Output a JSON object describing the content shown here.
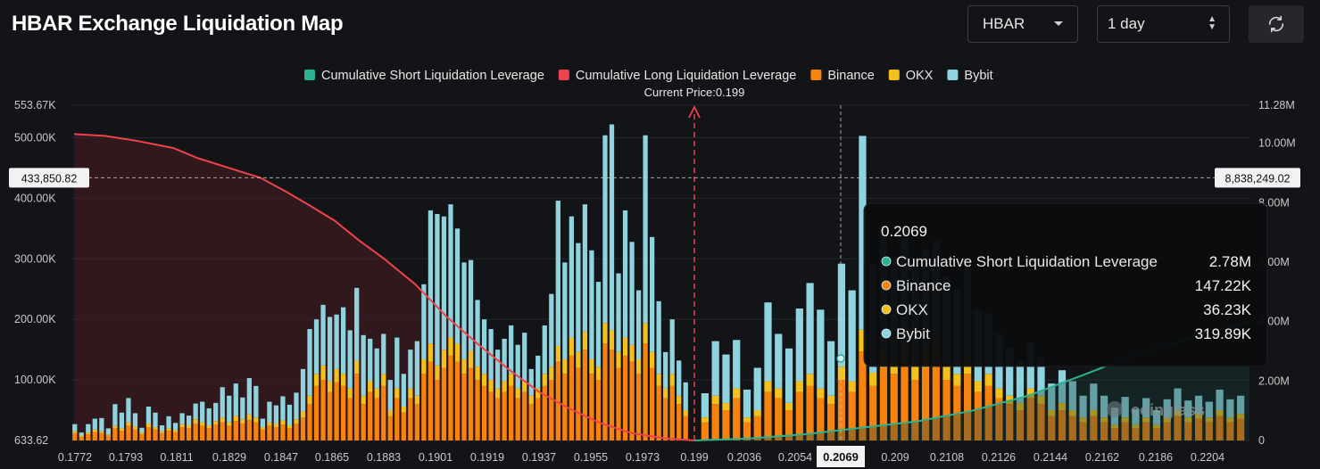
{
  "header": {
    "title": "HBAR Exchange Liquidation Map",
    "symbol_select": "HBAR",
    "period_select": "1 day",
    "refresh_icon": "refresh-icon"
  },
  "chart_data": {
    "type": "bar",
    "legend": {
      "placement": "top-center",
      "items": [
        {
          "label": "Cumulative Short Liquidation Leverage",
          "color": "#2bb28f"
        },
        {
          "label": "Cumulative Long Liquidation Leverage",
          "color": "#f0424c"
        },
        {
          "label": "Binance",
          "color": "#f7830f"
        },
        {
          "label": "OKX",
          "color": "#f3c01c"
        },
        {
          "label": "Bybit",
          "color": "#8ed3de"
        }
      ]
    },
    "current_price_label": "Current Price:0.199",
    "current_price": 0.199,
    "x_ticks": [
      "0.1772",
      "0.1793",
      "0.1811",
      "0.1829",
      "0.1847",
      "0.1865",
      "0.1883",
      "0.1901",
      "0.1919",
      "0.1937",
      "0.1955",
      "0.1973",
      "0.199",
      "0.2036",
      "0.2054",
      "0.2069",
      "0.209",
      "0.2108",
      "0.2126",
      "0.2144",
      "0.2162",
      "0.2186",
      "0.2204"
    ],
    "x_highlight_tick": "0.2069",
    "y_left_ticks": [
      "553.67K",
      "500.00K",
      "400.00K",
      "300.00K",
      "200.00K",
      "100.00K",
      "633.62"
    ],
    "y_left_tick_values": [
      553670,
      500000,
      400000,
      300000,
      200000,
      100000,
      633.62
    ],
    "y_left_range": [
      0,
      553670
    ],
    "y_right_ticks": [
      "11.28M",
      "10.00M",
      "8.00M",
      "6.00M",
      "4.00M",
      "2.00M",
      "0"
    ],
    "y_right_tick_values": [
      11280000,
      10000000,
      8000000,
      6000000,
      4000000,
      2000000,
      0
    ],
    "y_right_range": [
      0,
      11280000
    ],
    "crosshair": {
      "left_label": "433,850.82",
      "left_value": 433850.82,
      "right_label": "8,838,249.02"
    },
    "bars_left_of_price": [
      [
        12,
        3,
        12
      ],
      [
        6,
        2,
        5
      ],
      [
        10,
        3,
        14
      ],
      [
        14,
        4,
        18
      ],
      [
        12,
        3,
        22
      ],
      [
        8,
        2,
        10
      ],
      [
        20,
        4,
        36
      ],
      [
        16,
        4,
        26
      ],
      [
        24,
        6,
        40
      ],
      [
        18,
        5,
        22
      ],
      [
        10,
        3,
        8
      ],
      [
        22,
        6,
        28
      ],
      [
        18,
        4,
        24
      ],
      [
        12,
        3,
        10
      ],
      [
        16,
        4,
        20
      ],
      [
        14,
        3,
        12
      ],
      [
        22,
        5,
        18
      ],
      [
        20,
        5,
        16
      ],
      [
        28,
        7,
        26
      ],
      [
        24,
        6,
        34
      ],
      [
        20,
        5,
        28
      ],
      [
        26,
        6,
        30
      ],
      [
        30,
        8,
        50
      ],
      [
        24,
        6,
        44
      ],
      [
        32,
        8,
        54
      ],
      [
        28,
        7,
        36
      ],
      [
        34,
        9,
        60
      ],
      [
        30,
        8,
        52
      ],
      [
        18,
        4,
        14
      ],
      [
        24,
        6,
        34
      ],
      [
        22,
        6,
        30
      ],
      [
        26,
        7,
        40
      ],
      [
        20,
        5,
        34
      ],
      [
        28,
        7,
        44
      ],
      [
        38,
        10,
        70
      ],
      [
        60,
        14,
        110
      ],
      [
        90,
        20,
        90
      ],
      [
        100,
        24,
        100
      ],
      [
        80,
        18,
        106
      ],
      [
        96,
        22,
        90
      ],
      [
        90,
        20,
        110
      ],
      [
        70,
        16,
        96
      ],
      [
        110,
        22,
        120
      ],
      [
        60,
        14,
        100
      ],
      [
        80,
        18,
        70
      ],
      [
        70,
        16,
        66
      ],
      [
        90,
        20,
        66
      ],
      [
        40,
        10,
        50
      ],
      [
        70,
        16,
        84
      ],
      [
        46,
        10,
        54
      ],
      [
        70,
        16,
        64
      ],
      [
        60,
        14,
        90
      ],
      [
        110,
        24,
        124
      ],
      [
        130,
        30,
        220
      ],
      [
        100,
        24,
        250
      ],
      [
        120,
        30,
        220
      ],
      [
        140,
        30,
        220
      ],
      [
        130,
        30,
        190
      ],
      [
        110,
        24,
        160
      ],
      [
        120,
        28,
        150
      ],
      [
        100,
        22,
        110
      ],
      [
        90,
        20,
        90
      ],
      [
        80,
        20,
        84
      ],
      [
        70,
        16,
        64
      ],
      [
        80,
        18,
        70
      ],
      [
        90,
        20,
        80
      ],
      [
        70,
        16,
        72
      ],
      [
        80,
        18,
        80
      ],
      [
        60,
        14,
        44
      ],
      [
        70,
        16,
        54
      ],
      [
        90,
        20,
        80
      ],
      [
        100,
        22,
        120
      ],
      [
        130,
        26,
        240
      ],
      [
        110,
        24,
        160
      ],
      [
        140,
        30,
        200
      ],
      [
        120,
        26,
        180
      ],
      [
        150,
        30,
        210
      ],
      [
        110,
        24,
        180
      ],
      [
        100,
        22,
        140
      ],
      [
        160,
        34,
        310
      ],
      [
        150,
        32,
        340
      ],
      [
        120,
        26,
        130
      ],
      [
        140,
        30,
        210
      ],
      [
        130,
        28,
        170
      ],
      [
        110,
        24,
        114
      ],
      [
        160,
        34,
        310
      ],
      [
        120,
        26,
        190
      ],
      [
        90,
        20,
        120
      ],
      [
        70,
        16,
        60
      ],
      [
        90,
        20,
        90
      ],
      [
        60,
        14,
        58
      ],
      [
        40,
        10,
        46
      ]
    ],
    "bars_right_of_price": [
      [
        30,
        8,
        40
      ],
      [
        60,
        14,
        90
      ],
      [
        50,
        12,
        80
      ],
      [
        70,
        16,
        80
      ],
      [
        30,
        8,
        46
      ],
      [
        40,
        10,
        70
      ],
      [
        80,
        18,
        130
      ],
      [
        70,
        16,
        90
      ],
      [
        50,
        12,
        90
      ],
      [
        80,
        18,
        120
      ],
      [
        90,
        20,
        150
      ],
      [
        70,
        16,
        130
      ],
      [
        60,
        14,
        90
      ],
      [
        100,
        22,
        170
      ],
      [
        80,
        18,
        150
      ],
      [
        147,
        36,
        320
      ],
      [
        90,
        22,
        180
      ],
      [
        120,
        26,
        210
      ],
      [
        110,
        24,
        170
      ],
      [
        130,
        28,
        190
      ],
      [
        100,
        22,
        170
      ],
      [
        120,
        26,
        170
      ],
      [
        140,
        30,
        160
      ],
      [
        100,
        22,
        150
      ],
      [
        90,
        20,
        140
      ],
      [
        110,
        24,
        150
      ],
      [
        80,
        18,
        120
      ],
      [
        90,
        20,
        100
      ],
      [
        70,
        16,
        90
      ],
      [
        60,
        14,
        80
      ],
      [
        50,
        12,
        70
      ],
      [
        70,
        16,
        76
      ],
      [
        60,
        14,
        64
      ],
      [
        40,
        10,
        44
      ],
      [
        50,
        12,
        54
      ],
      [
        40,
        10,
        48
      ],
      [
        30,
        8,
        36
      ],
      [
        40,
        10,
        44
      ],
      [
        30,
        8,
        36
      ],
      [
        20,
        6,
        28
      ],
      [
        30,
        8,
        34
      ],
      [
        20,
        6,
        26
      ],
      [
        30,
        8,
        32
      ],
      [
        20,
        6,
        24
      ],
      [
        30,
        8,
        30
      ],
      [
        40,
        10,
        36
      ],
      [
        30,
        8,
        28
      ],
      [
        36,
        8,
        30
      ],
      [
        30,
        8,
        26
      ],
      [
        40,
        10,
        34
      ],
      [
        30,
        8,
        30
      ],
      [
        36,
        8,
        30
      ]
    ],
    "bar_units": "thousands (Binance, OKX, Bybit)",
    "long_curve": [
      [
        0,
        506
      ],
      [
        0.05,
        503
      ],
      [
        0.1,
        495
      ],
      [
        0.16,
        483
      ],
      [
        0.2,
        466
      ],
      [
        0.25,
        450
      ],
      [
        0.3,
        434
      ],
      [
        0.34,
        412
      ],
      [
        0.38,
        388
      ],
      [
        0.42,
        363
      ],
      [
        0.46,
        330
      ],
      [
        0.5,
        300
      ],
      [
        0.55,
        258
      ],
      [
        0.6,
        205
      ],
      [
        0.65,
        160
      ],
      [
        0.7,
        118
      ],
      [
        0.75,
        80
      ],
      [
        0.8,
        52
      ],
      [
        0.85,
        28
      ],
      [
        0.9,
        12
      ],
      [
        0.95,
        4
      ],
      [
        1,
        0
      ]
    ],
    "short_curve": [
      [
        0,
        0
      ],
      [
        0.1,
        0.07
      ],
      [
        0.2,
        0.21
      ],
      [
        0.3,
        0.43
      ],
      [
        0.4,
        0.64
      ],
      [
        0.5,
        1.0
      ],
      [
        0.6,
        1.5
      ],
      [
        0.7,
        2.2
      ],
      [
        0.78,
        2.78
      ],
      [
        0.85,
        3.2
      ],
      [
        0.92,
        3.6
      ],
      [
        1,
        4.0
      ]
    ],
    "tooltip": {
      "title": "0.2069",
      "rows": [
        {
          "label": "Cumulative Short Liquidation Leverage",
          "value": "2.78M",
          "color": "#2bb28f"
        },
        {
          "label": "Binance",
          "value": "147.22K",
          "color": "#f7830f"
        },
        {
          "label": "OKX",
          "value": "36.23K",
          "color": "#f3c01c"
        },
        {
          "label": "Bybit",
          "value": "319.89K",
          "color": "#8ed3de"
        }
      ]
    },
    "watermark": "coinglass"
  }
}
